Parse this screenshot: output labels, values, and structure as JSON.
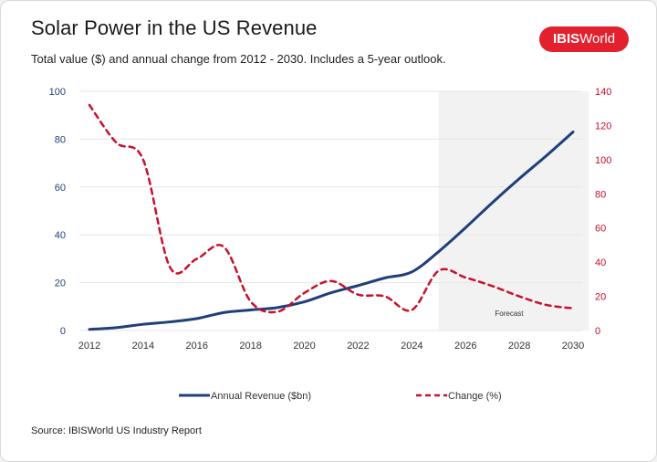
{
  "header": {
    "title": "Solar Power in the US Revenue",
    "subtitle": "Total value ($) and annual change from 2012 - 2030. Includes a 5-year outlook."
  },
  "brand": {
    "logo_text": "IBISWorld",
    "logo_bold": "IBIS",
    "logo_rest": "World",
    "color": "#e3202e"
  },
  "footer": {
    "source": "Source: IBISWorld US Industry Report"
  },
  "chart_data": {
    "type": "line",
    "x": [
      2012,
      2013,
      2014,
      2015,
      2016,
      2017,
      2018,
      2019,
      2020,
      2021,
      2022,
      2023,
      2024,
      2025,
      2026,
      2027,
      2028,
      2029,
      2030
    ],
    "x_ticks": [
      2012,
      2014,
      2016,
      2018,
      2020,
      2022,
      2024,
      2026,
      2028,
      2030
    ],
    "series": [
      {
        "name": "Annual Revenue ($bn)",
        "axis": "left",
        "color": "#1f3f7a",
        "style": "solid",
        "values": [
          0.5,
          1.2,
          2.6,
          3.6,
          5.0,
          7.5,
          8.6,
          9.6,
          12.0,
          15.8,
          18.8,
          22.0,
          24.5,
          33.0,
          43.0,
          53.5,
          63.5,
          73.0,
          83.0
        ]
      },
      {
        "name": "Change (%)",
        "axis": "right",
        "color": "#c8102e",
        "style": "dashed",
        "values": [
          132,
          110,
          100,
          37,
          42,
          49,
          17,
          11,
          22,
          29,
          21,
          20,
          12,
          35,
          31,
          26,
          20,
          15,
          13
        ]
      }
    ],
    "y_left": {
      "min": 0,
      "max": 100,
      "ticks": [
        0,
        20,
        40,
        60,
        80,
        100
      ],
      "color": "#1f3f7a"
    },
    "y_right": {
      "min": 0,
      "max": 140,
      "ticks": [
        0,
        20,
        40,
        60,
        80,
        100,
        120,
        140
      ],
      "color": "#c8102e"
    },
    "forecast": {
      "start": 2025,
      "end": 2030,
      "label": "Forecast"
    },
    "grid": true,
    "legend": "bottom"
  }
}
